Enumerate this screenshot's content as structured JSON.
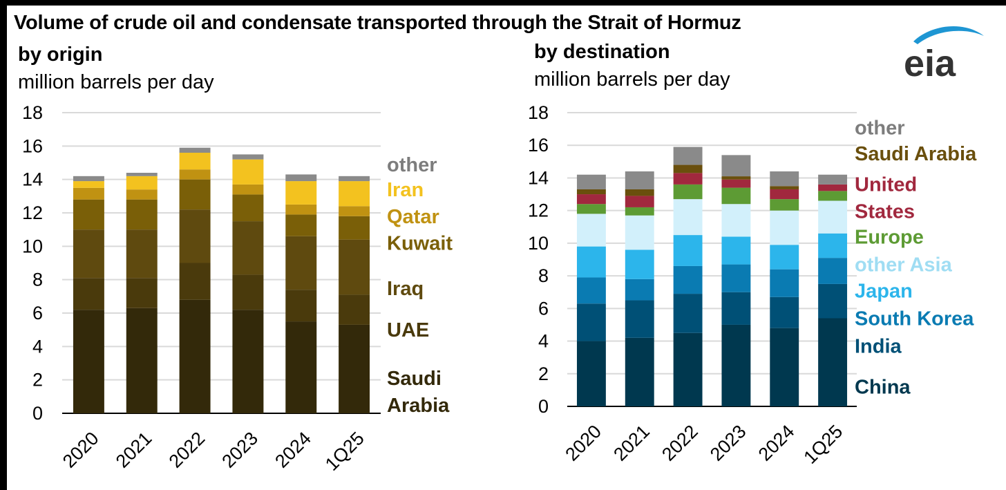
{
  "title": "Volume of crude oil and condensate transported through the Strait of Hormuz",
  "logo_text": "eia",
  "chart_data": [
    {
      "type": "bar",
      "stacked": true,
      "title": "by origin",
      "ylabel": "million barrels per day",
      "ylim": [
        0,
        18
      ],
      "yticks": [
        0,
        2,
        4,
        6,
        8,
        10,
        12,
        14,
        16,
        18
      ],
      "grid": true,
      "legend_position": "right",
      "categories": [
        "2020",
        "2021",
        "2022",
        "2023",
        "2024",
        "1Q25"
      ],
      "series": [
        {
          "name": "Saudi Arabia",
          "legend_lines": [
            "Saudi",
            "Arabia"
          ],
          "legend_y": 1.3,
          "color": "#33290A",
          "label_color": "#33290A",
          "values": [
            6.2,
            6.3,
            6.8,
            6.2,
            5.5,
            5.3
          ]
        },
        {
          "name": "UAE",
          "legend_lines": [
            "UAE"
          ],
          "legend_y": 5.0,
          "color": "#4A3A0C",
          "label_color": "#4A3A0C",
          "values": [
            1.9,
            1.8,
            2.2,
            2.1,
            1.9,
            1.8
          ]
        },
        {
          "name": "Iraq",
          "legend_lines": [
            "Iraq"
          ],
          "legend_y": 7.5,
          "color": "#5F4A0F",
          "label_color": "#5F4A0F",
          "values": [
            2.9,
            2.9,
            3.2,
            3.2,
            3.2,
            3.3
          ]
        },
        {
          "name": "Kuwait",
          "legend_lines": [
            "Kuwait"
          ],
          "legend_y": 10.2,
          "color": "#7A5F08",
          "label_color": "#7A5F08",
          "values": [
            1.8,
            1.8,
            1.8,
            1.6,
            1.3,
            1.4
          ]
        },
        {
          "name": "Qatar",
          "legend_lines": [
            "Qatar"
          ],
          "legend_y": 11.8,
          "color": "#C09212",
          "label_color": "#C09212",
          "values": [
            0.7,
            0.6,
            0.6,
            0.6,
            0.6,
            0.6
          ]
        },
        {
          "name": "Iran",
          "legend_lines": [
            "Iran"
          ],
          "legend_y": 13.4,
          "color": "#F3C21F",
          "label_color": "#F3C21F",
          "values": [
            0.4,
            0.8,
            1.0,
            1.5,
            1.4,
            1.5
          ]
        },
        {
          "name": "other",
          "legend_lines": [
            "other"
          ],
          "legend_y": 14.9,
          "color": "#8A8A8A",
          "label_color": "#7D7D7D",
          "values": [
            0.3,
            0.2,
            0.3,
            0.3,
            0.4,
            0.3
          ]
        }
      ]
    },
    {
      "type": "bar",
      "stacked": true,
      "title": "by destination",
      "ylabel": "million barrels per day",
      "ylim": [
        0,
        18
      ],
      "yticks": [
        0,
        2,
        4,
        6,
        8,
        10,
        12,
        14,
        16,
        18
      ],
      "grid": true,
      "legend_position": "right",
      "categories": [
        "2020",
        "2021",
        "2022",
        "2023",
        "2024",
        "1Q25"
      ],
      "series": [
        {
          "name": "China",
          "legend_lines": [
            "China"
          ],
          "legend_y": 1.2,
          "color": "#00384F",
          "label_color": "#00384F",
          "values": [
            4.0,
            4.2,
            4.5,
            5.0,
            4.8,
            5.4
          ]
        },
        {
          "name": "India",
          "legend_lines": [
            "India"
          ],
          "legend_y": 3.7,
          "color": "#005076",
          "label_color": "#005076",
          "values": [
            2.3,
            2.3,
            2.4,
            2.0,
            1.9,
            2.1
          ]
        },
        {
          "name": "South Korea",
          "legend_lines": [
            "South Korea"
          ],
          "legend_y": 5.4,
          "color": "#0A7BB2",
          "label_color": "#0A7BB2",
          "values": [
            1.6,
            1.3,
            1.7,
            1.7,
            1.7,
            1.6
          ]
        },
        {
          "name": "Japan",
          "legend_lines": [
            "Japan"
          ],
          "legend_y": 7.1,
          "color": "#2CB5EB",
          "label_color": "#2CB5EB",
          "values": [
            1.9,
            1.8,
            1.9,
            1.7,
            1.5,
            1.5
          ]
        },
        {
          "name": "other Asia",
          "legend_lines": [
            "other Asia"
          ],
          "legend_y": 8.7,
          "color": "#D2F0FB",
          "label_color": "#9FDDF3",
          "values": [
            2.0,
            2.1,
            2.2,
            2.0,
            2.1,
            2.0
          ]
        },
        {
          "name": "Europe",
          "legend_lines": [
            "Europe"
          ],
          "legend_y": 10.4,
          "color": "#5D9B34",
          "label_color": "#5D9B34",
          "values": [
            0.6,
            0.5,
            0.9,
            1.0,
            0.7,
            0.6
          ]
        },
        {
          "name": "United States",
          "legend_lines": [
            "United",
            "States"
          ],
          "legend_y": 12.8,
          "color": "#A1283E",
          "label_color": "#A1283E",
          "values": [
            0.6,
            0.7,
            0.7,
            0.5,
            0.6,
            0.4
          ]
        },
        {
          "name": "Saudi Arabia",
          "legend_lines": [
            "Saudi Arabia"
          ],
          "legend_y": 15.5,
          "color": "#6A4F0D",
          "label_color": "#6A4F0D",
          "values": [
            0.3,
            0.4,
            0.5,
            0.2,
            0.2,
            0.0
          ]
        },
        {
          "name": "other",
          "legend_lines": [
            "other"
          ],
          "legend_y": 17.1,
          "color": "#8A8A8A",
          "label_color": "#7D7D7D",
          "values": [
            0.9,
            1.1,
            1.1,
            1.3,
            0.9,
            0.6
          ]
        }
      ]
    }
  ]
}
